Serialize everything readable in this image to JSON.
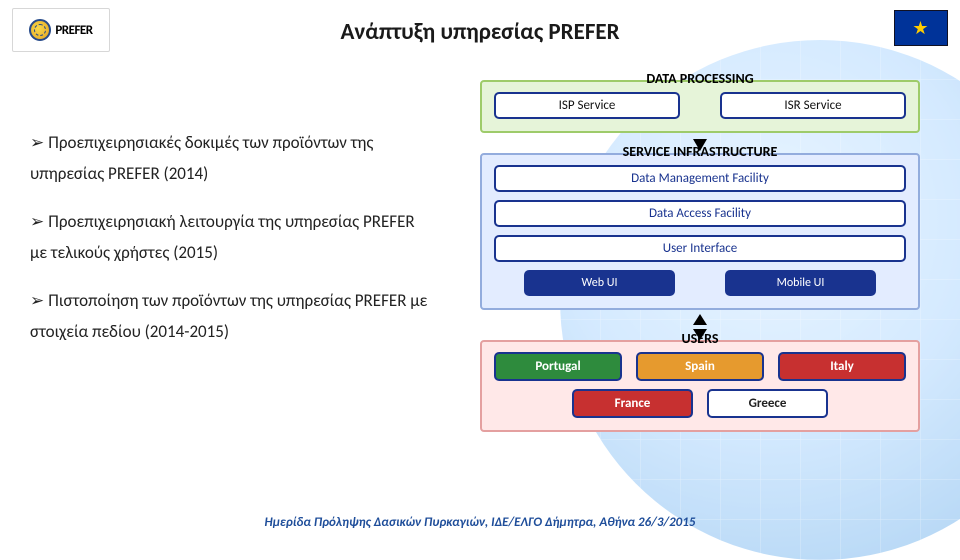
{
  "logo_text": "PREFER",
  "title": {
    "text": "Ανάπτυξη υπηρεσίας PREFER",
    "fontsize": 23,
    "color": "#1a1a1a"
  },
  "bullets": [
    "Προεπιχειρησιακές δοκιμές των προϊόντων της υπηρεσίας PREFER (2014)",
    "Προεπιχειρησιακή λειτουργία της υπηρεσίας PREFER με τελικούς χρήστες (2015)",
    "Πιστοποίηση των προϊόντων της υπηρεσίας PREFER με στοιχεία πεδίου (2014-2015)"
  ],
  "diagram": {
    "data_processing": {
      "title": "DATA PROCESSING",
      "bg": "#e6f4d9",
      "border": "#9ecb6a",
      "items": [
        "ISP Service",
        "ISR Service"
      ]
    },
    "service_infra": {
      "title": "SERVICE INFRASTRUCTURE",
      "bg": "#e3ecff",
      "border": "#93acdd",
      "stack": [
        "Data Management Facility",
        "Data Access Facility",
        "User Interface"
      ],
      "subrow": [
        "Web UI",
        "Mobile UI"
      ],
      "pill_text_color": "#19338f"
    },
    "users": {
      "title": "USERS",
      "bg": "#ffe8e8",
      "border": "#e4a0a0",
      "row1": [
        {
          "label": "Portugal",
          "color": "#2e8b3d"
        },
        {
          "label": "Spain",
          "color": "#e69a2e"
        },
        {
          "label": "Italy",
          "color": "#c73030"
        }
      ],
      "row2": [
        {
          "label": "France",
          "color": "#c73030"
        },
        {
          "label": "Greece",
          "color": "#ffffff",
          "text": "#222"
        }
      ]
    }
  },
  "footer": "Ημερίδα Πρόληψης Δασικών Πυρκαγιών, ΙΔΕ/ΕΛΓΟ Δήμητρα, Αθήνα 26/3/2015"
}
